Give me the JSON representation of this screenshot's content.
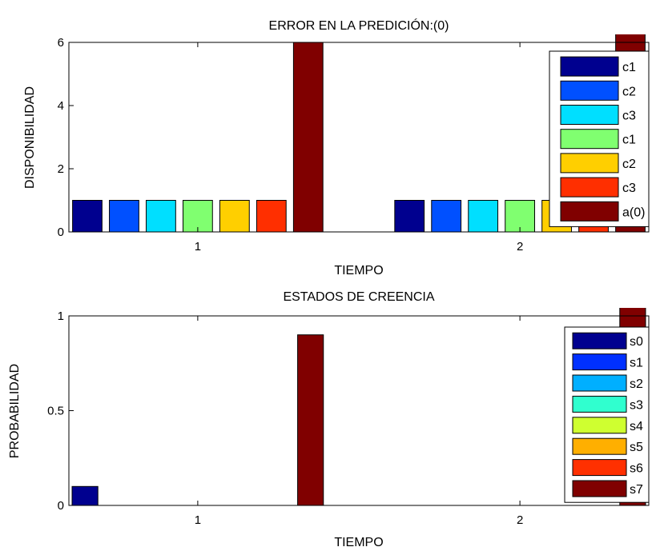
{
  "chart_data": [
    {
      "type": "bar",
      "title": "ERROR EN LA PREDICIÓN:(0)",
      "xlabel": "TIEMPO",
      "ylabel": "DISPONIBILIDAD",
      "categories": [
        "1",
        "2"
      ],
      "xlim": [
        0.6,
        2.4
      ],
      "ylim": [
        0,
        6
      ],
      "yticks": [
        "0",
        "2",
        "4",
        "6"
      ],
      "grid": false,
      "legend_position": "right",
      "series": [
        {
          "name": "c1",
          "color": "#00008f",
          "values": [
            1,
            1
          ]
        },
        {
          "name": "c2",
          "color": "#0050ff",
          "values": [
            1,
            1
          ]
        },
        {
          "name": "c3",
          "color": "#00dfff",
          "values": [
            1,
            1
          ]
        },
        {
          "name": "c1",
          "color": "#80ff70",
          "values": [
            1,
            1
          ]
        },
        {
          "name": "c2",
          "color": "#ffcf00",
          "values": [
            1,
            1
          ]
        },
        {
          "name": "c3",
          "color": "#ff2f00",
          "values": [
            1,
            1
          ]
        },
        {
          "name": "a(0)",
          "color": "#800000",
          "values": [
            6,
            6.5
          ]
        }
      ]
    },
    {
      "type": "bar",
      "title": "ESTADOS DE CREENCIA",
      "xlabel": "TIEMPO",
      "ylabel": "PROBABILIDAD",
      "categories": [
        "1",
        "2"
      ],
      "xlim": [
        0.6,
        2.4
      ],
      "ylim": [
        0,
        1
      ],
      "yticks": [
        "0",
        "0.5",
        "1"
      ],
      "grid": false,
      "legend_position": "right",
      "series": [
        {
          "name": "s0",
          "color": "#00008f",
          "values": [
            0.1,
            0
          ]
        },
        {
          "name": "s1",
          "color": "#0030ff",
          "values": [
            0,
            0
          ]
        },
        {
          "name": "s2",
          "color": "#00afff",
          "values": [
            0,
            0
          ]
        },
        {
          "name": "s3",
          "color": "#30ffcf",
          "values": [
            0,
            0
          ]
        },
        {
          "name": "s4",
          "color": "#cfff30",
          "values": [
            0,
            0
          ]
        },
        {
          "name": "s5",
          "color": "#ffaf00",
          "values": [
            0,
            0
          ]
        },
        {
          "name": "s6",
          "color": "#ff3000",
          "values": [
            0,
            0
          ]
        },
        {
          "name": "s7",
          "color": "#800000",
          "values": [
            0.9,
            1.05
          ]
        }
      ]
    }
  ]
}
